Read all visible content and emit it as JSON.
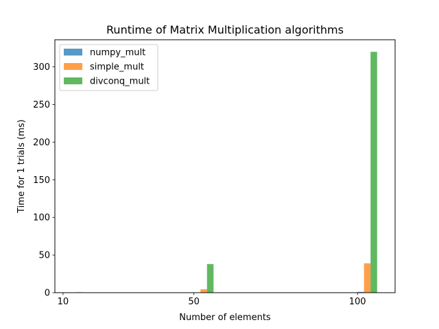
{
  "chart_data": {
    "type": "bar",
    "title": "Runtime of Matrix Multiplication algorithms",
    "xlabel": "Number of elements",
    "ylabel": "Time for 1 trials (ms)",
    "x": [
      10,
      50,
      100
    ],
    "xlim": [
      7.5,
      111.5
    ],
    "ylim": [
      0,
      336
    ],
    "yticks": [
      0,
      50,
      100,
      150,
      200,
      250,
      300
    ],
    "bar_width": 2,
    "grid": false,
    "legend_position": "top-left",
    "series": [
      {
        "name": "numpy_mult",
        "color": "#1f77b4",
        "offset": 1,
        "values": [
          0.05,
          0.4,
          1.0
        ]
      },
      {
        "name": "simple_mult",
        "color": "#ff7f0e",
        "offset": 3,
        "values": [
          0.2,
          4.5,
          39.0
        ]
      },
      {
        "name": "divconq_mult",
        "color": "#2ca02c",
        "offset": 5,
        "values": [
          0.6,
          38.0,
          320.0
        ]
      }
    ]
  }
}
